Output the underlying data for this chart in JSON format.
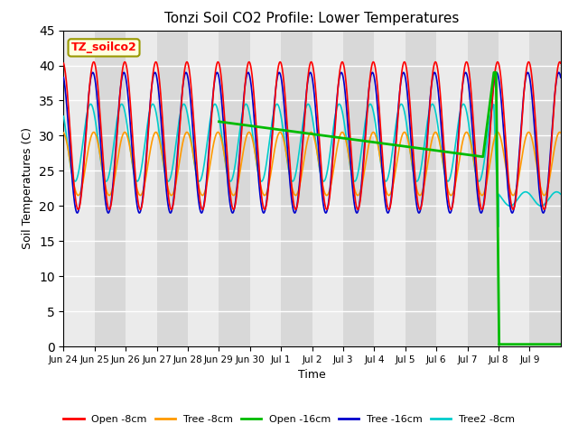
{
  "title": "Tonzi Soil CO2 Profile: Lower Temperatures",
  "xlabel": "Time",
  "ylabel": "Soil Temperatures (C)",
  "ylim": [
    0,
    45
  ],
  "box_label": "TZ_soilco2",
  "legend_entries": [
    "Open -8cm",
    "Tree -8cm",
    "Open -16cm",
    "Tree -16cm",
    "Tree2 -8cm"
  ],
  "line_colors": [
    "#ff0000",
    "#ff9900",
    "#00bb00",
    "#0000cc",
    "#00cccc"
  ],
  "xtick_labels": [
    "Jun 24",
    "Jun 25",
    "Jun 26",
    "Jun 27",
    "Jun 28",
    "Jun 29",
    "Jun 30",
    "Jul 1",
    "Jul 2",
    "Jul 3",
    "Jul 4",
    "Jul 5",
    "Jul 6",
    "Jul 7",
    "Jul 8",
    "Jul 9"
  ],
  "background_colors": [
    "#ebebeb",
    "#d8d8d8"
  ],
  "yticks": [
    0,
    5,
    10,
    15,
    20,
    25,
    30,
    35,
    40,
    45
  ],
  "figsize": [
    6.4,
    4.8
  ],
  "dpi": 100
}
